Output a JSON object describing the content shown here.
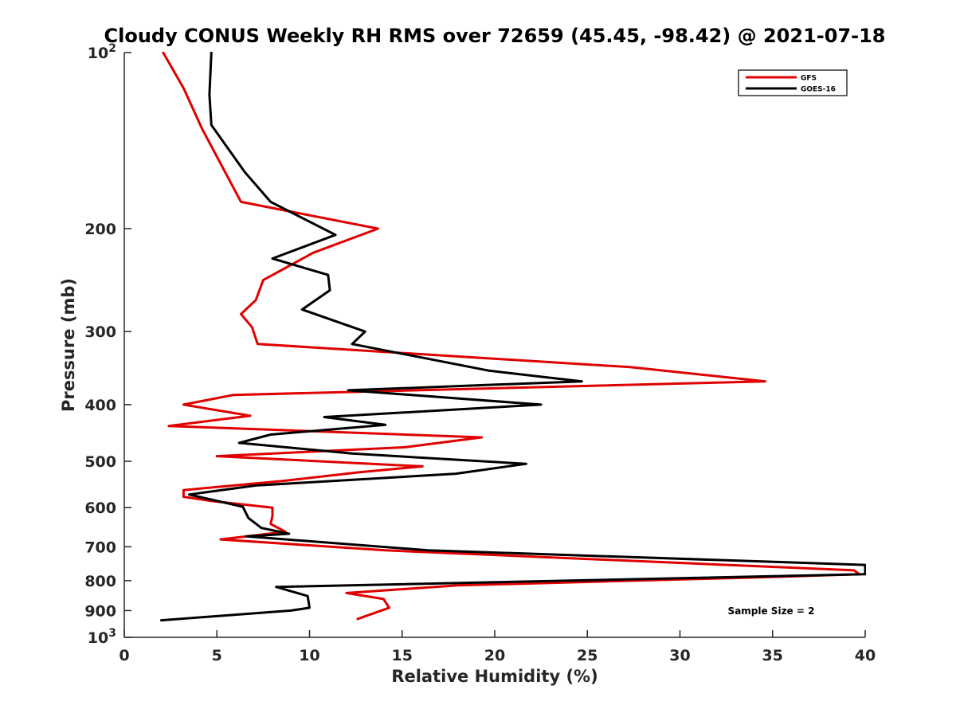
{
  "chart_data": {
    "type": "line",
    "title": "Cloudy CONUS Weekly RH RMS over 72659 (45.45, -98.42) @ 2021-07-18",
    "xlabel": "Relative Humidity (%)",
    "ylabel": "Pressure (mb)",
    "xlim": [
      0,
      40
    ],
    "ylim": [
      100,
      1000
    ],
    "y_scale": "log",
    "y_reversed": true,
    "grid": false,
    "legend_position": "top-right",
    "annotation": "Sample Size = 2",
    "x_ticks": [
      "0",
      "5",
      "10",
      "15",
      "20",
      "25",
      "30",
      "35",
      "40"
    ],
    "y_ticks": [
      {
        "value": 100,
        "base": "10",
        "exp": "2"
      },
      {
        "value": 200,
        "label": "200"
      },
      {
        "value": 300,
        "label": "300"
      },
      {
        "value": 400,
        "label": "400"
      },
      {
        "value": 500,
        "label": "500"
      },
      {
        "value": 600,
        "label": "600"
      },
      {
        "value": 700,
        "label": "700"
      },
      {
        "value": 800,
        "label": "800"
      },
      {
        "value": 900,
        "label": "900"
      },
      {
        "value": 1000,
        "base": "10",
        "exp": "3"
      }
    ],
    "series": [
      {
        "name": "GFS",
        "color": "#e00000",
        "points": [
          [
            2.1,
            100
          ],
          [
            3.2,
            115
          ],
          [
            4.2,
            135
          ],
          [
            6.3,
            180
          ],
          [
            13.7,
            200
          ],
          [
            10.2,
            220
          ],
          [
            7.5,
            245
          ],
          [
            7.1,
            265
          ],
          [
            6.3,
            280
          ],
          [
            6.9,
            295
          ],
          [
            7.2,
            315
          ],
          [
            27.3,
            345
          ],
          [
            34.6,
            365
          ],
          [
            5.9,
            385
          ],
          [
            3.2,
            400
          ],
          [
            6.8,
            418
          ],
          [
            2.4,
            435
          ],
          [
            19.3,
            455
          ],
          [
            15.2,
            473
          ],
          [
            5.0,
            490
          ],
          [
            16.1,
            510
          ],
          [
            12.7,
            522
          ],
          [
            8.6,
            540
          ],
          [
            3.2,
            560
          ],
          [
            3.2,
            575
          ],
          [
            4.8,
            585
          ],
          [
            8.0,
            600
          ],
          [
            8.0,
            620
          ],
          [
            7.9,
            640
          ],
          [
            8.7,
            660
          ],
          [
            5.2,
            680
          ],
          [
            14.1,
            710
          ],
          [
            39.4,
            768
          ],
          [
            39.7,
            780
          ],
          [
            34.0,
            790
          ],
          [
            18.0,
            815
          ],
          [
            12.0,
            840
          ],
          [
            14.0,
            860
          ],
          [
            14.3,
            890
          ],
          [
            12.6,
            930
          ]
        ]
      },
      {
        "name": "GOES-16",
        "color": "#000000",
        "points": [
          [
            4.7,
            100
          ],
          [
            4.6,
            118
          ],
          [
            4.7,
            133
          ],
          [
            6.5,
            160
          ],
          [
            7.9,
            180
          ],
          [
            11.4,
            205
          ],
          [
            8.0,
            225
          ],
          [
            11.0,
            240
          ],
          [
            11.1,
            255
          ],
          [
            9.6,
            275
          ],
          [
            13.0,
            300
          ],
          [
            12.3,
            315
          ],
          [
            19.7,
            350
          ],
          [
            24.7,
            365
          ],
          [
            12.1,
            378
          ],
          [
            22.5,
            400
          ],
          [
            10.8,
            420
          ],
          [
            14.1,
            433
          ],
          [
            7.9,
            450
          ],
          [
            6.2,
            465
          ],
          [
            12.3,
            485
          ],
          [
            21.7,
            505
          ],
          [
            17.9,
            525
          ],
          [
            7.1,
            550
          ],
          [
            3.5,
            570
          ],
          [
            6.4,
            598
          ],
          [
            6.7,
            625
          ],
          [
            7.4,
            650
          ],
          [
            8.9,
            665
          ],
          [
            6.6,
            672
          ],
          [
            16.4,
            710
          ],
          [
            40.0,
            752
          ],
          [
            40.0,
            780
          ],
          [
            8.2,
            820
          ],
          [
            9.9,
            850
          ],
          [
            10.0,
            890
          ],
          [
            9.0,
            900
          ],
          [
            2.0,
            935
          ]
        ]
      }
    ]
  }
}
